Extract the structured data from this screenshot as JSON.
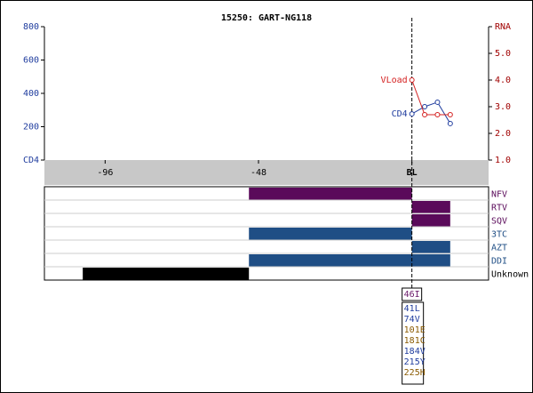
{
  "chart_data": {
    "type": "line",
    "title": "15250: GART-NG118",
    "x": [
      0,
      4,
      8,
      12
    ],
    "xlim": [
      -115,
      24
    ],
    "xticks": [
      -96,
      -48,
      {
        "value": 0,
        "label": "BL"
      }
    ],
    "ylim": [
      0,
      800
    ],
    "yticks": [
      {
        "value": 0,
        "label": "CD4"
      },
      200,
      400,
      600,
      800
    ],
    "y2lim": [
      1,
      6
    ],
    "y2ticks": [
      {
        "value": 1,
        "label": "1.0"
      },
      {
        "value": 2,
        "label": "2.0"
      },
      {
        "value": 3,
        "label": "3.0"
      },
      {
        "value": 4,
        "label": "4.0"
      },
      {
        "value": 5,
        "label": "5.0"
      },
      {
        "value": 6,
        "label": "RNA"
      }
    ],
    "series": [
      {
        "name": "CD4",
        "color": "#1f3c9e",
        "values": [
          277,
          320,
          347,
          219
        ]
      },
      {
        "name": "VLoad",
        "color": "#d42020",
        "axis": "y2",
        "values": [
          4.0,
          2.7,
          2.7,
          2.7
        ]
      }
    ],
    "drugs": [
      {
        "name": "NFV",
        "color": "#5a0a5a",
        "start": -51,
        "end": 0
      },
      {
        "name": "RTV",
        "color": "#5a0a5a",
        "start": 0,
        "end": 12
      },
      {
        "name": "SQV",
        "color": "#5a0a5a",
        "start": 0,
        "end": 12
      },
      {
        "name": "3TC",
        "color": "#1f4e85",
        "start": -51,
        "end": 0
      },
      {
        "name": "AZT",
        "color": "#1f4e85",
        "start": 0,
        "end": 12
      },
      {
        "name": "DDI",
        "color": "#1f4e85",
        "start": -51,
        "end": 12
      },
      {
        "name": "Unknown",
        "color": "#000000",
        "start": -103,
        "end": -51
      }
    ],
    "protease_mutations": [
      {
        "label": "46I",
        "color": "#6a1a6a"
      }
    ],
    "rt_mutations": [
      {
        "label": "41L",
        "color": "#1f3c9e"
      },
      {
        "label": "74V",
        "color": "#1f3c9e"
      },
      {
        "label": "101E",
        "color": "#8a5a00"
      },
      {
        "label": "181C",
        "color": "#8a5a00"
      },
      {
        "label": "184V",
        "color": "#1f3c9e"
      },
      {
        "label": "215Y",
        "color": "#1f3c9e"
      },
      {
        "label": "225H",
        "color": "#8a5a00"
      }
    ]
  }
}
